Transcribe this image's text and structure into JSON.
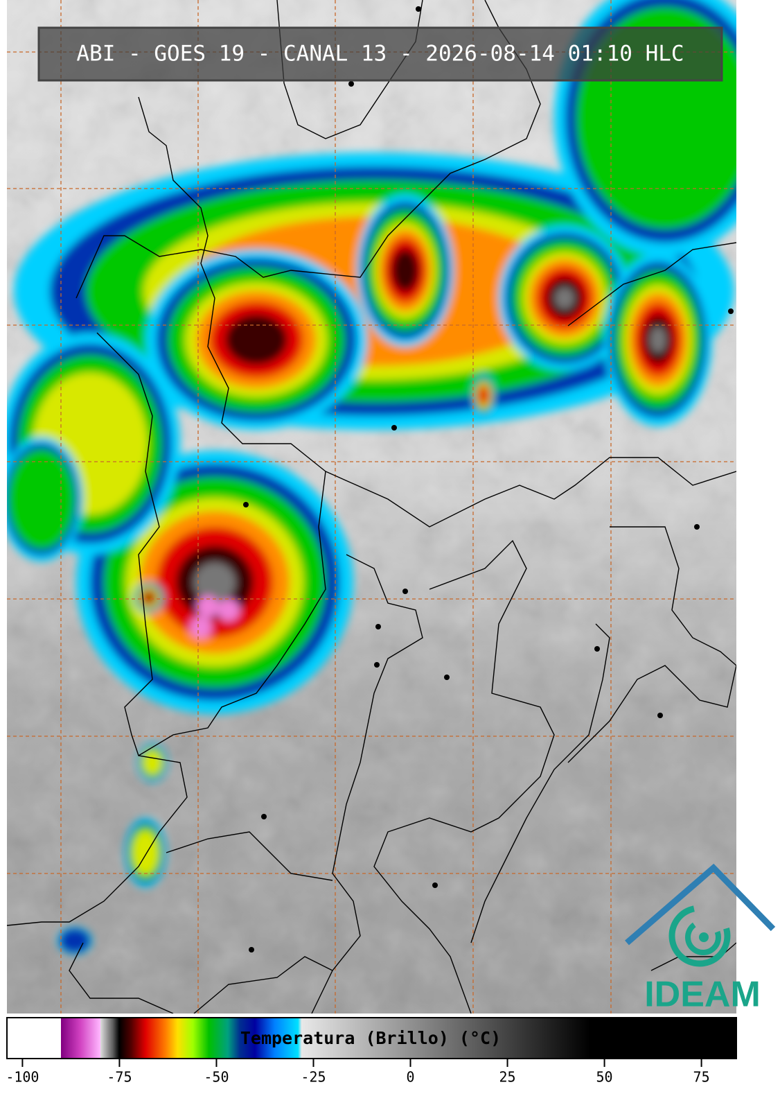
{
  "header": {
    "title": "ABI - GOES 19 - CANAL 13 - 2026-08-14 01:10 HLC"
  },
  "logo": {
    "text": "IDEAM"
  },
  "chart_data": {
    "type": "colorbar",
    "title": "Temperatura (Brillo) (°C)",
    "xlim": [
      -104,
      84
    ],
    "xticks": [
      -100,
      -75,
      -50,
      -25,
      0,
      25,
      50,
      75
    ]
  }
}
